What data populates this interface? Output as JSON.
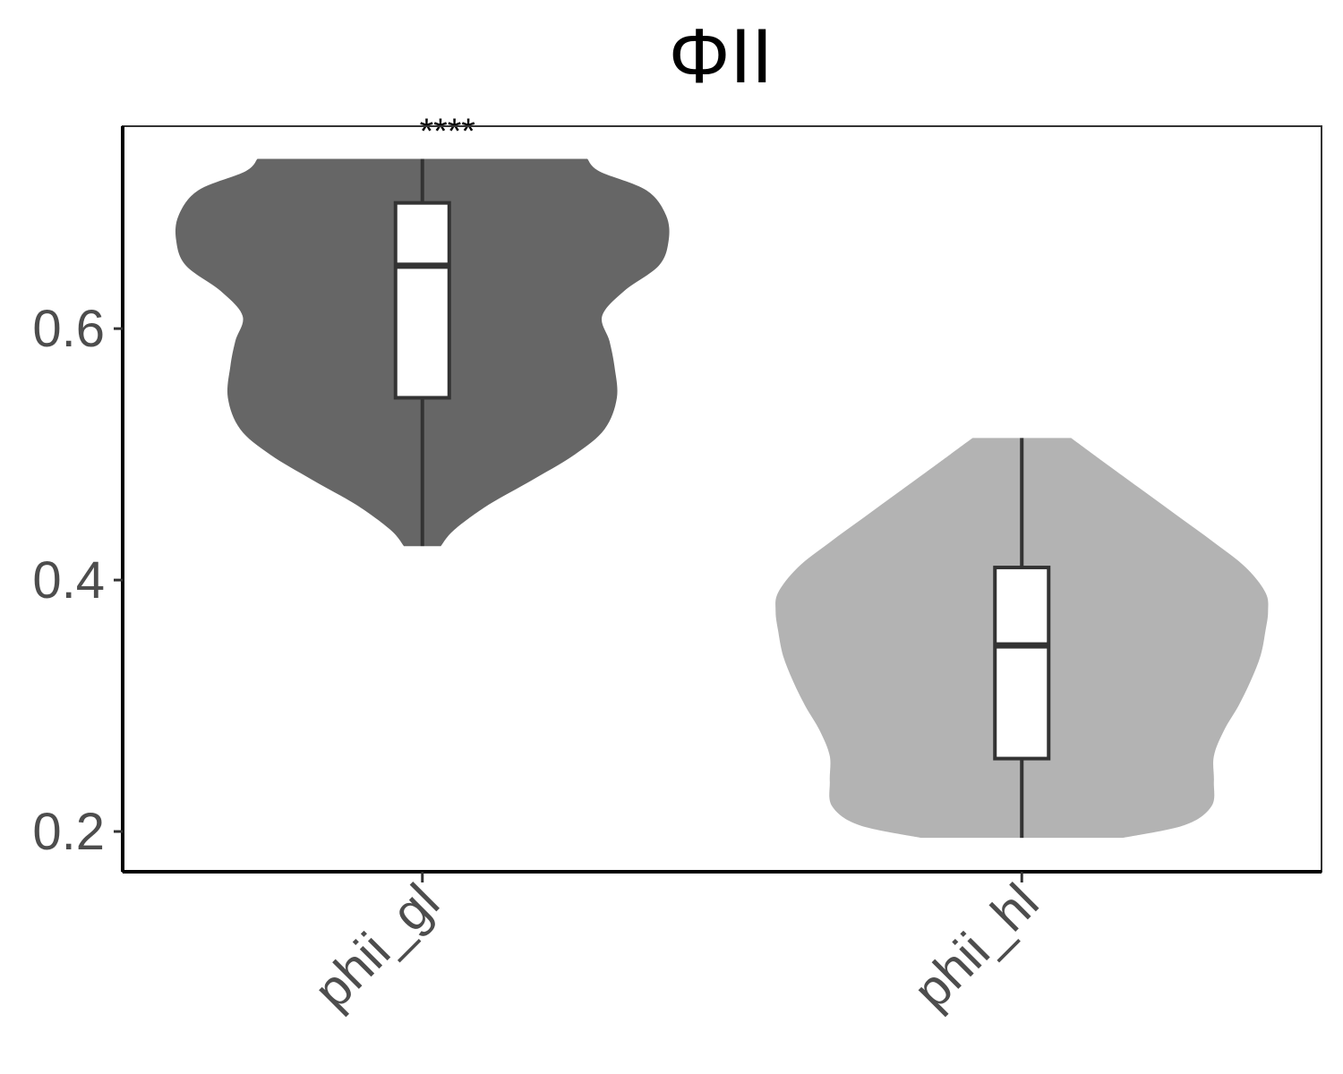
{
  "chart_data": {
    "type": "violin",
    "title": "ΦII",
    "xlabel": "",
    "ylabel": "",
    "categories": [
      "phii_gl",
      "phii_hl"
    ],
    "yticks": [
      0.2,
      0.4,
      0.6
    ],
    "ytick_labels": [
      "0.2",
      "0.4",
      "0.6"
    ],
    "ylim": [
      0.168,
      0.761
    ],
    "grid": false,
    "legend": "none",
    "significance_label": "****",
    "series": [
      {
        "category": "phii_gl",
        "color": "#666666",
        "min": 0.427,
        "q1": 0.545,
        "median": 0.65,
        "q3": 0.7,
        "max": 0.735,
        "density_profile": [
          [
            0.427,
            0.075
          ],
          [
            0.44,
            0.13
          ],
          [
            0.46,
            0.27
          ],
          [
            0.48,
            0.45
          ],
          [
            0.5,
            0.62
          ],
          [
            0.52,
            0.74
          ],
          [
            0.545,
            0.79
          ],
          [
            0.57,
            0.78
          ],
          [
            0.59,
            0.76
          ],
          [
            0.61,
            0.73
          ],
          [
            0.63,
            0.82
          ],
          [
            0.65,
            0.96
          ],
          [
            0.67,
            1.0
          ],
          [
            0.69,
            0.99
          ],
          [
            0.71,
            0.91
          ],
          [
            0.725,
            0.72
          ],
          [
            0.735,
            0.67
          ]
        ]
      },
      {
        "category": "phii_hl",
        "color": "#b3b3b3",
        "min": 0.195,
        "q1": 0.258,
        "median": 0.348,
        "q3": 0.41,
        "max": 0.513,
        "density_profile": [
          [
            0.195,
            0.41
          ],
          [
            0.205,
            0.66
          ],
          [
            0.22,
            0.77
          ],
          [
            0.24,
            0.78
          ],
          [
            0.26,
            0.78
          ],
          [
            0.28,
            0.82
          ],
          [
            0.3,
            0.88
          ],
          [
            0.32,
            0.93
          ],
          [
            0.34,
            0.97
          ],
          [
            0.36,
            0.99
          ],
          [
            0.375,
            1.0
          ],
          [
            0.39,
            0.99
          ],
          [
            0.41,
            0.91
          ],
          [
            0.43,
            0.78
          ],
          [
            0.45,
            0.64
          ],
          [
            0.47,
            0.5
          ],
          [
            0.49,
            0.36
          ],
          [
            0.5,
            0.29
          ],
          [
            0.513,
            0.2
          ]
        ]
      }
    ]
  }
}
